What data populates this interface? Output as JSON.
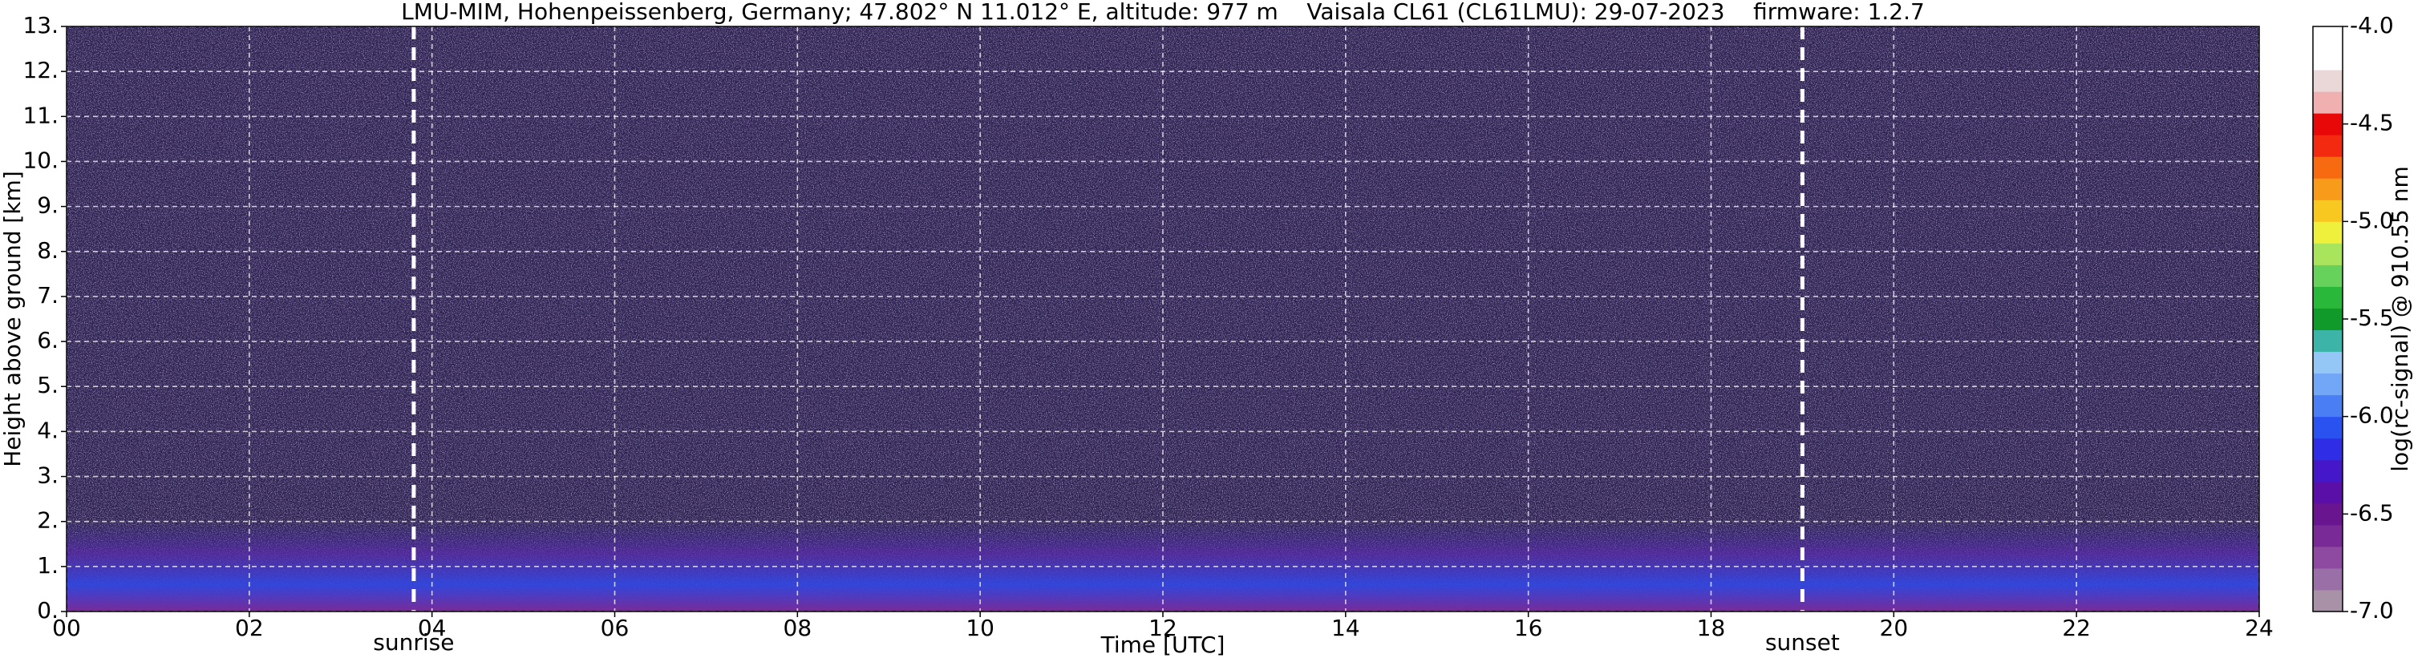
{
  "chart_data": {
    "type": "heatmap",
    "title": "LMU-MIM, Hohenpeissenberg, Germany; 47.802° N 11.012° E, altitude: 977 m    Vaisala CL61 (CL61LMU): 29-07-2023    firmware: 1.2.7",
    "x_label": "Time [UTC]",
    "y_label": "Height above ground [km]",
    "colorbar_label": "log(rc-signal) @ 910.55 nm",
    "xlim": [
      0,
      24
    ],
    "xticks": [
      {
        "value": 0,
        "label": "00"
      },
      {
        "value": 2,
        "label": "02"
      },
      {
        "value": 4,
        "label": "04"
      },
      {
        "value": 6,
        "label": "06"
      },
      {
        "value": 8,
        "label": "08"
      },
      {
        "value": 10,
        "label": "10"
      },
      {
        "value": 12,
        "label": "12"
      },
      {
        "value": 14,
        "label": "14"
      },
      {
        "value": 16,
        "label": "16"
      },
      {
        "value": 18,
        "label": "18"
      },
      {
        "value": 20,
        "label": "20"
      },
      {
        "value": 22,
        "label": "22"
      },
      {
        "value": 24,
        "label": "24"
      }
    ],
    "ylim": [
      0,
      13
    ],
    "yticks": [
      {
        "value": 0,
        "label": "0."
      },
      {
        "value": 1,
        "label": "1."
      },
      {
        "value": 2,
        "label": "2."
      },
      {
        "value": 3,
        "label": "3."
      },
      {
        "value": 4,
        "label": "4."
      },
      {
        "value": 5,
        "label": "5."
      },
      {
        "value": 6,
        "label": "6."
      },
      {
        "value": 7,
        "label": "7."
      },
      {
        "value": 8,
        "label": "8."
      },
      {
        "value": 9,
        "label": "9."
      },
      {
        "value": 10,
        "label": "10."
      },
      {
        "value": 11,
        "label": "11."
      },
      {
        "value": 12,
        "label": "12."
      },
      {
        "value": 13,
        "label": "13."
      }
    ],
    "grid": true,
    "clim": [
      -7,
      -4
    ],
    "cticks": [
      {
        "value": -7,
        "label": "-7.0"
      },
      {
        "value": -6.5,
        "label": "-6.5"
      },
      {
        "value": -6,
        "label": "-6.0"
      },
      {
        "value": -5.5,
        "label": "-5.5"
      },
      {
        "value": -5,
        "label": "-5.0"
      },
      {
        "value": -4.5,
        "label": "-4.5"
      },
      {
        "value": -4,
        "label": "-4.0"
      }
    ],
    "colormap": [
      "#a892a8",
      "#9a6ea6",
      "#8d4aa0",
      "#7a2a96",
      "#6a1590",
      "#5a10a8",
      "#4418c8",
      "#2f2ee6",
      "#2a52f0",
      "#4a7ef5",
      "#72a6f6",
      "#94c6f6",
      "#3cb4a8",
      "#109a2a",
      "#2ab83a",
      "#66d25c",
      "#a8e45c",
      "#eef03c",
      "#f8c820",
      "#f89a1a",
      "#f86a10",
      "#f42a10",
      "#e80808",
      "#f0b0b0",
      "#ead8d8",
      "#ffffff",
      "#ffffff"
    ],
    "annotations": [
      {
        "x": 3.8,
        "label": "sunrise"
      },
      {
        "x": 19.0,
        "label": "sunset"
      }
    ]
  }
}
